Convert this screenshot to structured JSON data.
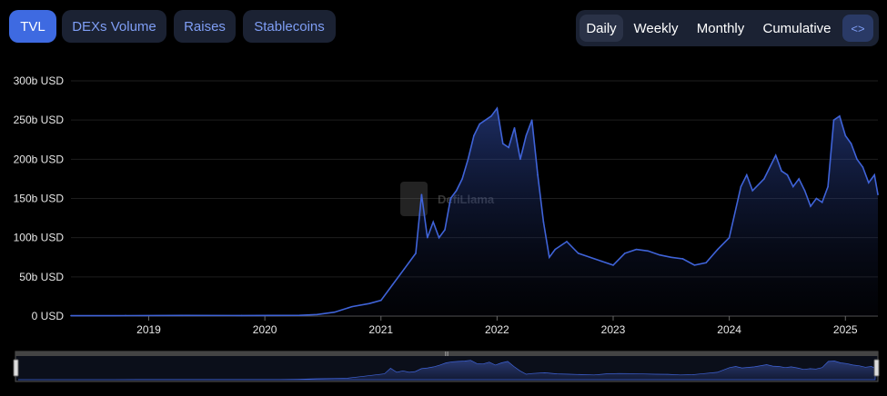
{
  "tabs": [
    {
      "label": "TVL",
      "active": true
    },
    {
      "label": "DEXs Volume",
      "active": false
    },
    {
      "label": "Raises",
      "active": false
    },
    {
      "label": "Stablecoins",
      "active": false
    }
  ],
  "granularity": {
    "options": [
      "Daily",
      "Weekly",
      "Monthly",
      "Cumulative"
    ],
    "selected": "Daily",
    "embed_icon": "code-brackets-icon",
    "embed_glyph": "<>"
  },
  "watermark": "DefiLlama",
  "brush_handle_glyph": "|||",
  "colors": {
    "accent": "#3e6ae1",
    "line": "#3f63d8",
    "tab_bg": "#1b2233",
    "tab_text": "#7f9ef5"
  },
  "chart_data": {
    "type": "area",
    "title": "",
    "xlabel": "",
    "ylabel": "",
    "y_unit": "USD",
    "ylim": [
      0,
      300
    ],
    "y_ticks": [
      {
        "value": 0,
        "label": "0 USD"
      },
      {
        "value": 50,
        "label": "50b USD"
      },
      {
        "value": 100,
        "label": "100b USD"
      },
      {
        "value": 150,
        "label": "150b USD"
      },
      {
        "value": 200,
        "label": "200b USD"
      },
      {
        "value": 250,
        "label": "250b USD"
      },
      {
        "value": 300,
        "label": "300b USD"
      }
    ],
    "x_ticks": [
      "2019",
      "2020",
      "2021",
      "2022",
      "2023",
      "2024",
      "2025"
    ],
    "grid": true,
    "series": [
      {
        "x": [
          2018.33,
          2018.8,
          2019.3,
          2019.8,
          2020.3,
          2020.45,
          2020.6,
          2020.75,
          2020.9,
          2021.0,
          2021.1,
          2021.2,
          2021.3,
          2021.35,
          2021.4,
          2021.45,
          2021.5,
          2021.55,
          2021.6,
          2021.65,
          2021.7,
          2021.75,
          2021.8,
          2021.85,
          2021.9,
          2021.95,
          2022.0,
          2022.05,
          2022.1,
          2022.15,
          2022.2,
          2022.25,
          2022.3,
          2022.35,
          2022.4,
          2022.45,
          2022.5,
          2022.6,
          2022.7,
          2022.8,
          2022.9,
          2023.0,
          2023.1,
          2023.2,
          2023.3,
          2023.4,
          2023.5,
          2023.6,
          2023.7,
          2023.8,
          2023.9,
          2024.0,
          2024.1,
          2024.15,
          2024.2,
          2024.3,
          2024.4,
          2024.45,
          2024.5,
          2024.55,
          2024.6,
          2024.65,
          2024.7,
          2024.75,
          2024.8,
          2024.85,
          2024.9,
          2024.95,
          2025.0,
          2025.05,
          2025.1,
          2025.15,
          2025.2,
          2025.25,
          2025.28
        ],
        "values": [
          0.5,
          0.6,
          0.8,
          0.7,
          0.9,
          2,
          5,
          12,
          16,
          20,
          40,
          60,
          80,
          155,
          100,
          120,
          100,
          110,
          150,
          160,
          175,
          200,
          230,
          245,
          250,
          255,
          265,
          220,
          215,
          240,
          200,
          230,
          250,
          180,
          120,
          75,
          85,
          95,
          80,
          75,
          70,
          65,
          80,
          85,
          83,
          78,
          75,
          73,
          65,
          68,
          85,
          100,
          165,
          180,
          160,
          175,
          205,
          185,
          180,
          165,
          175,
          160,
          140,
          150,
          145,
          165,
          250,
          255,
          230,
          220,
          200,
          190,
          170,
          180,
          155
        ]
      }
    ],
    "brush": {
      "start": 2018.33,
      "end": 2025.28
    }
  }
}
